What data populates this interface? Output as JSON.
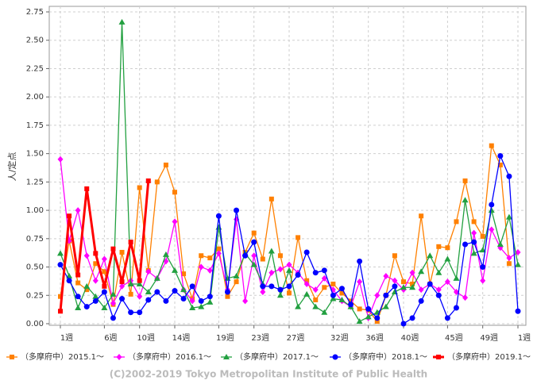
{
  "chart_data": {
    "type": "line",
    "y_label": "人/定点",
    "footer": "(C)2002-2019 Tokyo Metropolitan Institute of Public Health",
    "categories": [
      "1週",
      null,
      null,
      null,
      null,
      "6週",
      null,
      null,
      null,
      "10週",
      null,
      null,
      null,
      "14週",
      null,
      null,
      null,
      null,
      "19週",
      null,
      null,
      null,
      "23週",
      null,
      null,
      null,
      "27週",
      null,
      null,
      null,
      null,
      "32週",
      null,
      null,
      null,
      "36週",
      null,
      null,
      null,
      "40週",
      null,
      null,
      null,
      null,
      "45週",
      null,
      null,
      null,
      "49週",
      null,
      null,
      null,
      "1週"
    ],
    "ylim": [
      0,
      2.75
    ],
    "yticks": [
      {
        "value": 0,
        "label": "0.00"
      },
      {
        "value": 0.25,
        "label": "0.25"
      },
      {
        "value": 0.5,
        "label": "0.50"
      },
      {
        "value": 0.75,
        "label": "0.75"
      },
      {
        "value": 1,
        "label": "1.00"
      },
      {
        "value": 1.25,
        "label": "1.25"
      },
      {
        "value": 1.5,
        "label": "1.50"
      },
      {
        "value": 1.75,
        "label": "1.75"
      },
      {
        "value": 2,
        "label": "2.00"
      },
      {
        "value": 2.25,
        "label": "2.25"
      },
      {
        "value": 2.5,
        "label": "2.50"
      },
      {
        "value": 2.75,
        "label": "2.75"
      }
    ],
    "grid": true,
    "legend": "bottom",
    "series": [
      {
        "name": "（多摩府中）2015.1～",
        "color": "#ff8000",
        "marker": "square",
        "values": [
          0.24,
          0.73,
          0.36,
          0.3,
          0.53,
          0.46,
          0.17,
          0.63,
          0.26,
          1.2,
          0.47,
          1.25,
          1.4,
          1.16,
          0.44,
          0.22,
          0.6,
          0.58,
          0.66,
          0.24,
          0.37,
          0.63,
          0.8,
          0.57,
          1.1,
          0.6,
          0.27,
          0.76,
          0.38,
          0.21,
          0.32,
          0.35,
          0.27,
          0.2,
          0.13,
          0.12,
          0.02,
          0.25,
          0.6,
          0.37,
          0.35,
          0.95,
          0.35,
          0.68,
          0.67,
          0.9,
          1.26,
          0.9,
          0.77,
          1.57,
          1.4,
          0.53,
          null
        ]
      },
      {
        "name": "（多摩府中）2016.1～",
        "color": "#ff00ff",
        "marker": "diamond",
        "values": [
          1.45,
          0.73,
          1.0,
          0.6,
          0.38,
          0.57,
          0.18,
          0.33,
          0.38,
          0.24,
          0.46,
          0.4,
          0.55,
          0.9,
          0.3,
          0.2,
          0.5,
          0.47,
          0.62,
          0.3,
          0.92,
          0.2,
          0.6,
          0.28,
          0.45,
          0.48,
          0.52,
          0.45,
          0.35,
          0.3,
          0.4,
          0.3,
          0.2,
          0.15,
          0.37,
          0.05,
          0.25,
          0.42,
          0.38,
          0.3,
          0.45,
          0.3,
          0.35,
          0.3,
          0.37,
          0.28,
          0.23,
          0.8,
          0.38,
          0.83,
          0.67,
          0.58,
          0.63
        ]
      },
      {
        "name": "（多摩府中）2017.1～",
        "color": "#22a040",
        "marker": "triangle",
        "values": [
          0.62,
          0.42,
          0.14,
          0.33,
          0.24,
          0.14,
          0.26,
          2.66,
          0.35,
          0.35,
          0.28,
          0.4,
          0.61,
          0.47,
          0.3,
          0.14,
          0.15,
          0.19,
          0.85,
          0.4,
          0.42,
          0.62,
          0.52,
          0.35,
          0.64,
          0.25,
          0.47,
          0.15,
          0.26,
          0.15,
          0.1,
          0.22,
          0.21,
          0.15,
          0.02,
          0.06,
          0.1,
          0.15,
          0.28,
          0.32,
          0.32,
          0.46,
          0.6,
          0.45,
          0.57,
          0.4,
          1.09,
          0.62,
          0.65,
          1.0,
          0.7,
          0.94,
          0.52
        ]
      },
      {
        "name": "（多摩府中）2018.1～",
        "color": "#0000ff",
        "marker": "circle",
        "values": [
          0.52,
          0.38,
          0.24,
          0.15,
          0.2,
          0.28,
          0.05,
          0.22,
          0.1,
          0.1,
          0.21,
          0.28,
          0.2,
          0.29,
          0.22,
          0.33,
          0.2,
          0.24,
          0.95,
          0.28,
          1.0,
          0.6,
          0.72,
          0.33,
          0.33,
          0.3,
          0.33,
          0.43,
          0.63,
          0.45,
          0.47,
          0.25,
          0.31,
          0.17,
          0.55,
          0.13,
          0.05,
          0.25,
          0.33,
          0.0,
          0.05,
          0.2,
          0.35,
          0.25,
          0.05,
          0.14,
          0.7,
          0.72,
          0.5,
          1.05,
          1.48,
          1.3,
          0.11
        ]
      },
      {
        "name": "（多摩府中）2019.1～",
        "color": "#ff0000",
        "marker": "square",
        "width": 3,
        "values": [
          0.11,
          0.95,
          0.43,
          1.19,
          0.62,
          0.33,
          0.66,
          0.37,
          0.72,
          0.38,
          1.26,
          null,
          null,
          null,
          null,
          null,
          null,
          null,
          null,
          null,
          null,
          null,
          null,
          null,
          null,
          null,
          null,
          null,
          null,
          null,
          null,
          null,
          null,
          null,
          null,
          null,
          null,
          null,
          null,
          null,
          null,
          null,
          null,
          null,
          null,
          null,
          null,
          null,
          null,
          null,
          null,
          null,
          null
        ]
      }
    ]
  }
}
